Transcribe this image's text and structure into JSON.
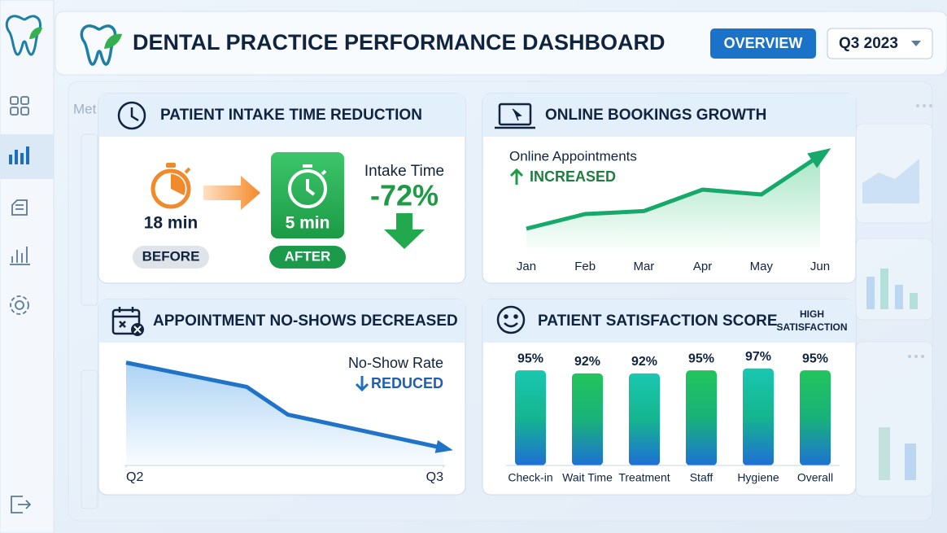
{
  "header": {
    "title": "DENTAL PRACTICE PERFORMANCE DASHBOARD",
    "button": "OVERVIEW",
    "period": "Q3 2023"
  },
  "background": {
    "label": "Met"
  },
  "intake": {
    "title": "PATIENT INTAKE TIME REDUCTION",
    "before_value": "18 min",
    "before_label": "BEFORE",
    "after_value": "5 min",
    "after_label": "AFTER",
    "metric_label": "Intake Time",
    "change": "-72%"
  },
  "bookings": {
    "title": "ONLINE BOOKINGS GROWTH",
    "label": "Online Appointments",
    "status": "INCREASED",
    "chart_data": {
      "type": "line",
      "categories": [
        "Jan",
        "Feb",
        "Mar",
        "Apr",
        "May",
        "Jun"
      ],
      "series": [
        {
          "name": "Online Appointments",
          "color": "#17a86b",
          "values": [
            20,
            35,
            38,
            60,
            55,
            95
          ]
        }
      ],
      "ylim": [
        0,
        100
      ]
    }
  },
  "noshows": {
    "title": "APPOINTMENT NO-SHOWS DECREASED",
    "label": "No-Show Rate",
    "status": "REDUCED",
    "chart_data": {
      "type": "line",
      "x": [
        0,
        0.38,
        0.51,
        1
      ],
      "series": [
        {
          "name": "No-Show Rate",
          "color": "#1f74c8",
          "values": [
            89,
            68,
            44,
            15
          ]
        }
      ],
      "xlim": [
        0,
        1
      ],
      "xticks": [
        {
          "value": 0,
          "label": "Q2"
        },
        {
          "value": 1,
          "label": "Q3"
        }
      ],
      "ylim": [
        0,
        100
      ]
    }
  },
  "satisfaction": {
    "title": "PATIENT SATISFACTION SCORE",
    "badge": "HIGH SATISFACTION",
    "chart_data": {
      "type": "bar",
      "categories": [
        "Check-in",
        "Wait Time",
        "Treatment",
        "Staff",
        "Hygiene",
        "Overall"
      ],
      "values": [
        95,
        92,
        92,
        95,
        97,
        95
      ],
      "value_labels": [
        "95%",
        "92%",
        "92%",
        "95%",
        "97%",
        "95%"
      ],
      "ylim": [
        0,
        100
      ]
    }
  }
}
